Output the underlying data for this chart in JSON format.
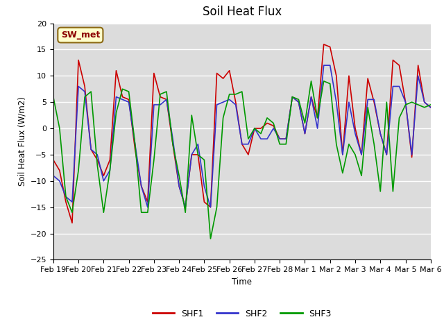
{
  "title": "Soil Heat Flux",
  "ylabel": "Soil Heat Flux (W/m2)",
  "xlabel": "Time",
  "ylim": [
    -25,
    20
  ],
  "annotation": "SW_met",
  "background_color": "#dcdcdc",
  "grid_color": "white",
  "legend_labels": [
    "SHF1",
    "SHF2",
    "SHF3"
  ],
  "legend_colors": [
    "#cc0000",
    "#3333cc",
    "#009900"
  ],
  "x_tick_labels": [
    "Feb 19",
    "Feb 20",
    "Feb 21",
    "Feb 22",
    "Feb 23",
    "Feb 24",
    "Feb 25",
    "Feb 26",
    "Feb 27",
    "Feb 28",
    "Mar 1",
    "Mar 2",
    "Mar 3",
    "Mar 4",
    "Mar 5",
    "Mar 6"
  ],
  "shf1_x": [
    0.0,
    0.25,
    0.5,
    0.75,
    1.0,
    1.25,
    1.5,
    1.75,
    2.0,
    2.25,
    2.5,
    2.75,
    3.0,
    3.25,
    3.5,
    3.75,
    4.0,
    4.25,
    4.5,
    4.75,
    5.0,
    5.25,
    5.5,
    5.75,
    6.0,
    6.25,
    6.5,
    6.75,
    7.0,
    7.25,
    7.5,
    7.75,
    8.0,
    8.25,
    8.5,
    8.75,
    9.0,
    9.25,
    9.5,
    9.75,
    10.0,
    10.25,
    10.5,
    10.75,
    11.0,
    11.25,
    11.5,
    11.75,
    12.0,
    12.25,
    12.5,
    12.75,
    13.0,
    13.25,
    13.5,
    13.75,
    14.0,
    14.25,
    14.5,
    14.75,
    15.0
  ],
  "shf1": [
    -6,
    -8,
    -14,
    -18,
    13,
    8,
    -4,
    -6,
    -9,
    -6,
    11,
    6,
    5.5,
    -4,
    -11,
    -14,
    10.5,
    6,
    5.5,
    -3,
    -11,
    -15,
    -5,
    -5,
    -14,
    -15,
    10.5,
    9.5,
    11,
    5,
    -3,
    -5,
    0,
    0,
    1,
    0.5,
    -2,
    -2,
    6,
    5,
    -1,
    6,
    2,
    16,
    15.5,
    10,
    -5,
    10,
    0,
    -5,
    9.5,
    5,
    -1,
    -5,
    13,
    12,
    5,
    -5.5,
    12,
    5,
    4
  ],
  "shf2": [
    -9,
    -10,
    -13,
    -14,
    8,
    7,
    -4,
    -5,
    -10,
    -8,
    6,
    5.5,
    5,
    -3,
    -11,
    -15,
    4.5,
    4.5,
    5.5,
    -2,
    -11,
    -15,
    -5,
    -3,
    -11,
    -15,
    4.5,
    5,
    5.5,
    4.5,
    -3,
    -3,
    0,
    -2,
    -2,
    0,
    -2,
    -2,
    6,
    5,
    -1,
    6,
    0,
    12,
    12,
    5,
    -5,
    5,
    -1,
    -5,
    5.5,
    5.5,
    -1,
    -5,
    8,
    8,
    5,
    -5,
    10,
    5,
    4
  ],
  "shf3": [
    6,
    0,
    -13,
    -16,
    -8,
    6,
    7,
    -7,
    -16,
    -8,
    3,
    7.5,
    7,
    -3,
    -16,
    -16,
    -6,
    6.5,
    7,
    -3,
    -9,
    -16,
    2.5,
    -5,
    -6,
    -21,
    -15,
    2,
    6.5,
    6.5,
    7,
    -2,
    0,
    -1,
    2,
    1,
    -3,
    -3,
    6,
    5.5,
    1,
    9,
    2,
    9,
    8.5,
    -3,
    -8.5,
    -3,
    -5,
    -9,
    4,
    -3,
    -12,
    5,
    -12,
    2,
    4.5,
    5,
    4.5,
    4,
    4.5
  ],
  "yticks": [
    -25,
    -20,
    -15,
    -10,
    -5,
    0,
    5,
    10,
    15,
    20
  ]
}
